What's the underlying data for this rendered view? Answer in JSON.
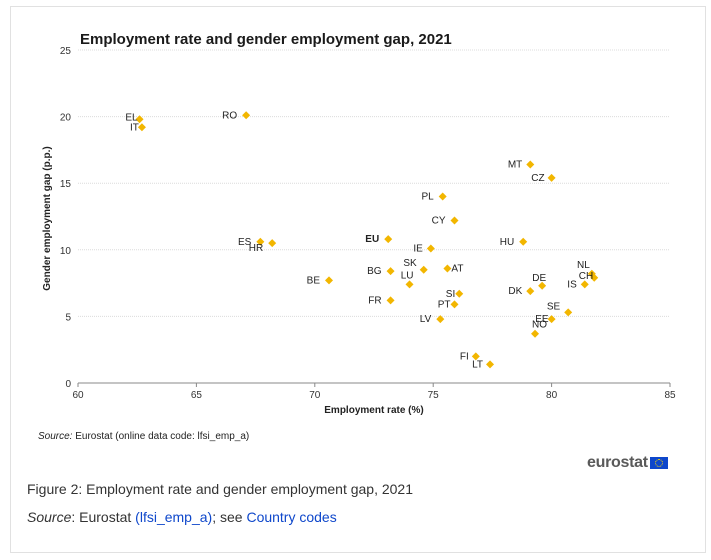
{
  "colors": {
    "marker": "#f2b600",
    "grid": "#dcdcdc",
    "axis_text": "#333333",
    "link": "#0e47cb"
  },
  "source_note": {
    "prefix": "Source:",
    "text": " Eurostat (online data code: lfsi_emp_a)"
  },
  "logo": {
    "text": "eurostat",
    "icon": "eu-flag-icon"
  },
  "caption": "Figure 2: Employment rate and gender employment gap, 2021",
  "source_line": {
    "prefix": "Source",
    "sep": ": Eurostat ",
    "link1": "(lfsi_emp_a)",
    "mid": "; see ",
    "link2": "Country codes"
  },
  "chart_data": {
    "type": "scatter",
    "title": "Employment rate and gender employment gap, 2021",
    "xlabel": "Employment rate (%)",
    "ylabel": "Gender employment gap (p.p.)",
    "xlim": [
      60,
      85
    ],
    "ylim": [
      0,
      25
    ],
    "xticks": [
      60,
      65,
      70,
      75,
      80,
      85
    ],
    "yticks": [
      0,
      5,
      10,
      15,
      20,
      25
    ],
    "grid": "horizontal",
    "points": [
      {
        "label": "EL",
        "x": 62.6,
        "y": 19.8
      },
      {
        "label": "IT",
        "x": 62.7,
        "y": 19.2
      },
      {
        "label": "RO",
        "x": 67.1,
        "y": 20.1
      },
      {
        "label": "MT",
        "x": 79.1,
        "y": 16.4
      },
      {
        "label": "CZ",
        "x": 80.0,
        "y": 15.4
      },
      {
        "label": "PL",
        "x": 75.4,
        "y": 14.0
      },
      {
        "label": "CY",
        "x": 75.9,
        "y": 12.2
      },
      {
        "label": "EU",
        "x": 73.1,
        "y": 10.8,
        "bold": true
      },
      {
        "label": "ES",
        "x": 67.7,
        "y": 10.6
      },
      {
        "label": "HR",
        "x": 68.2,
        "y": 10.5
      },
      {
        "label": "IE",
        "x": 74.9,
        "y": 10.1
      },
      {
        "label": "HU",
        "x": 78.8,
        "y": 10.6
      },
      {
        "label": "NL",
        "x": 81.7,
        "y": 8.2
      },
      {
        "label": "CH",
        "x": 81.8,
        "y": 7.9
      },
      {
        "label": "IS",
        "x": 81.4,
        "y": 7.4
      },
      {
        "label": "DE",
        "x": 79.6,
        "y": 7.3
      },
      {
        "label": "DK",
        "x": 79.1,
        "y": 6.9
      },
      {
        "label": "SK",
        "x": 74.6,
        "y": 8.5
      },
      {
        "label": "AT",
        "x": 75.6,
        "y": 8.6
      },
      {
        "label": "BG",
        "x": 73.2,
        "y": 8.4
      },
      {
        "label": "LU",
        "x": 74.0,
        "y": 7.4
      },
      {
        "label": "BE",
        "x": 70.6,
        "y": 7.7
      },
      {
        "label": "FR",
        "x": 73.2,
        "y": 6.2
      },
      {
        "label": "SI",
        "x": 76.1,
        "y": 6.7
      },
      {
        "label": "PT",
        "x": 75.9,
        "y": 5.9
      },
      {
        "label": "LV",
        "x": 75.3,
        "y": 4.8
      },
      {
        "label": "SE",
        "x": 80.7,
        "y": 5.3
      },
      {
        "label": "EE",
        "x": 80.0,
        "y": 4.8
      },
      {
        "label": "NO",
        "x": 79.3,
        "y": 3.7
      },
      {
        "label": "FI",
        "x": 76.8,
        "y": 2.0
      },
      {
        "label": "LT",
        "x": 77.4,
        "y": 1.4
      }
    ]
  }
}
